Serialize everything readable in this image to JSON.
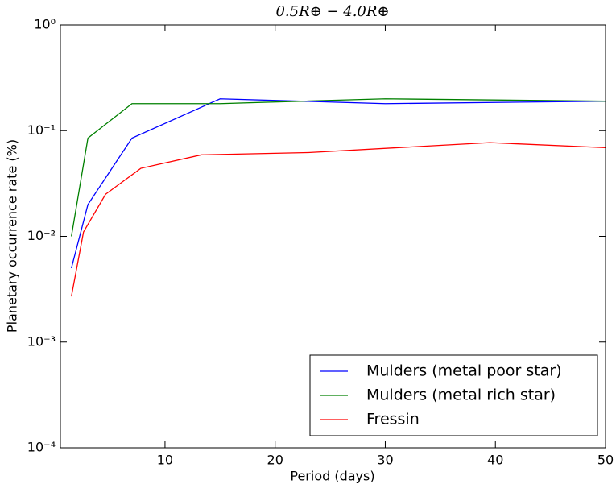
{
  "chart_data": {
    "type": "line",
    "title": "0.5R⊕ − 4.0R⊕",
    "x_label": "Period (days)",
    "y_label": "Planetary occurrence rate (%)",
    "xlim": [
      0.5,
      50
    ],
    "xticks": [
      10,
      20,
      30,
      40,
      50
    ],
    "ylim": [
      0.0001,
      1
    ],
    "log_y": true,
    "yticks": [
      {
        "value": 1,
        "label": "10⁰"
      },
      {
        "value": 0.1,
        "label": "10⁻¹"
      },
      {
        "value": 0.01,
        "label": "10⁻²"
      },
      {
        "value": 0.001,
        "label": "10⁻³"
      },
      {
        "value": 0.0001,
        "label": "10⁻⁴"
      }
    ],
    "legend": "lower right",
    "series": [
      {
        "name": "Mulders (metal poor star)",
        "color": "#0000ff",
        "x": [
          1.5,
          3,
          7,
          15,
          30,
          50
        ],
        "values": [
          0.005,
          0.02,
          0.085,
          0.2,
          0.18,
          0.19
        ]
      },
      {
        "name": "Mulders (metal rich star)",
        "color": "#008000",
        "x": [
          1.5,
          3,
          7,
          15,
          22.5,
          30,
          50
        ],
        "values": [
          0.01,
          0.085,
          0.18,
          0.18,
          0.19,
          0.2,
          0.19
        ]
      },
      {
        "name": "Fressin",
        "color": "#ff0000",
        "x": [
          1.5,
          2.6,
          4.6,
          7.8,
          13.3,
          23,
          39.5,
          50
        ],
        "values": [
          0.0027,
          0.011,
          0.025,
          0.044,
          0.059,
          0.062,
          0.077,
          0.069
        ]
      }
    ]
  }
}
